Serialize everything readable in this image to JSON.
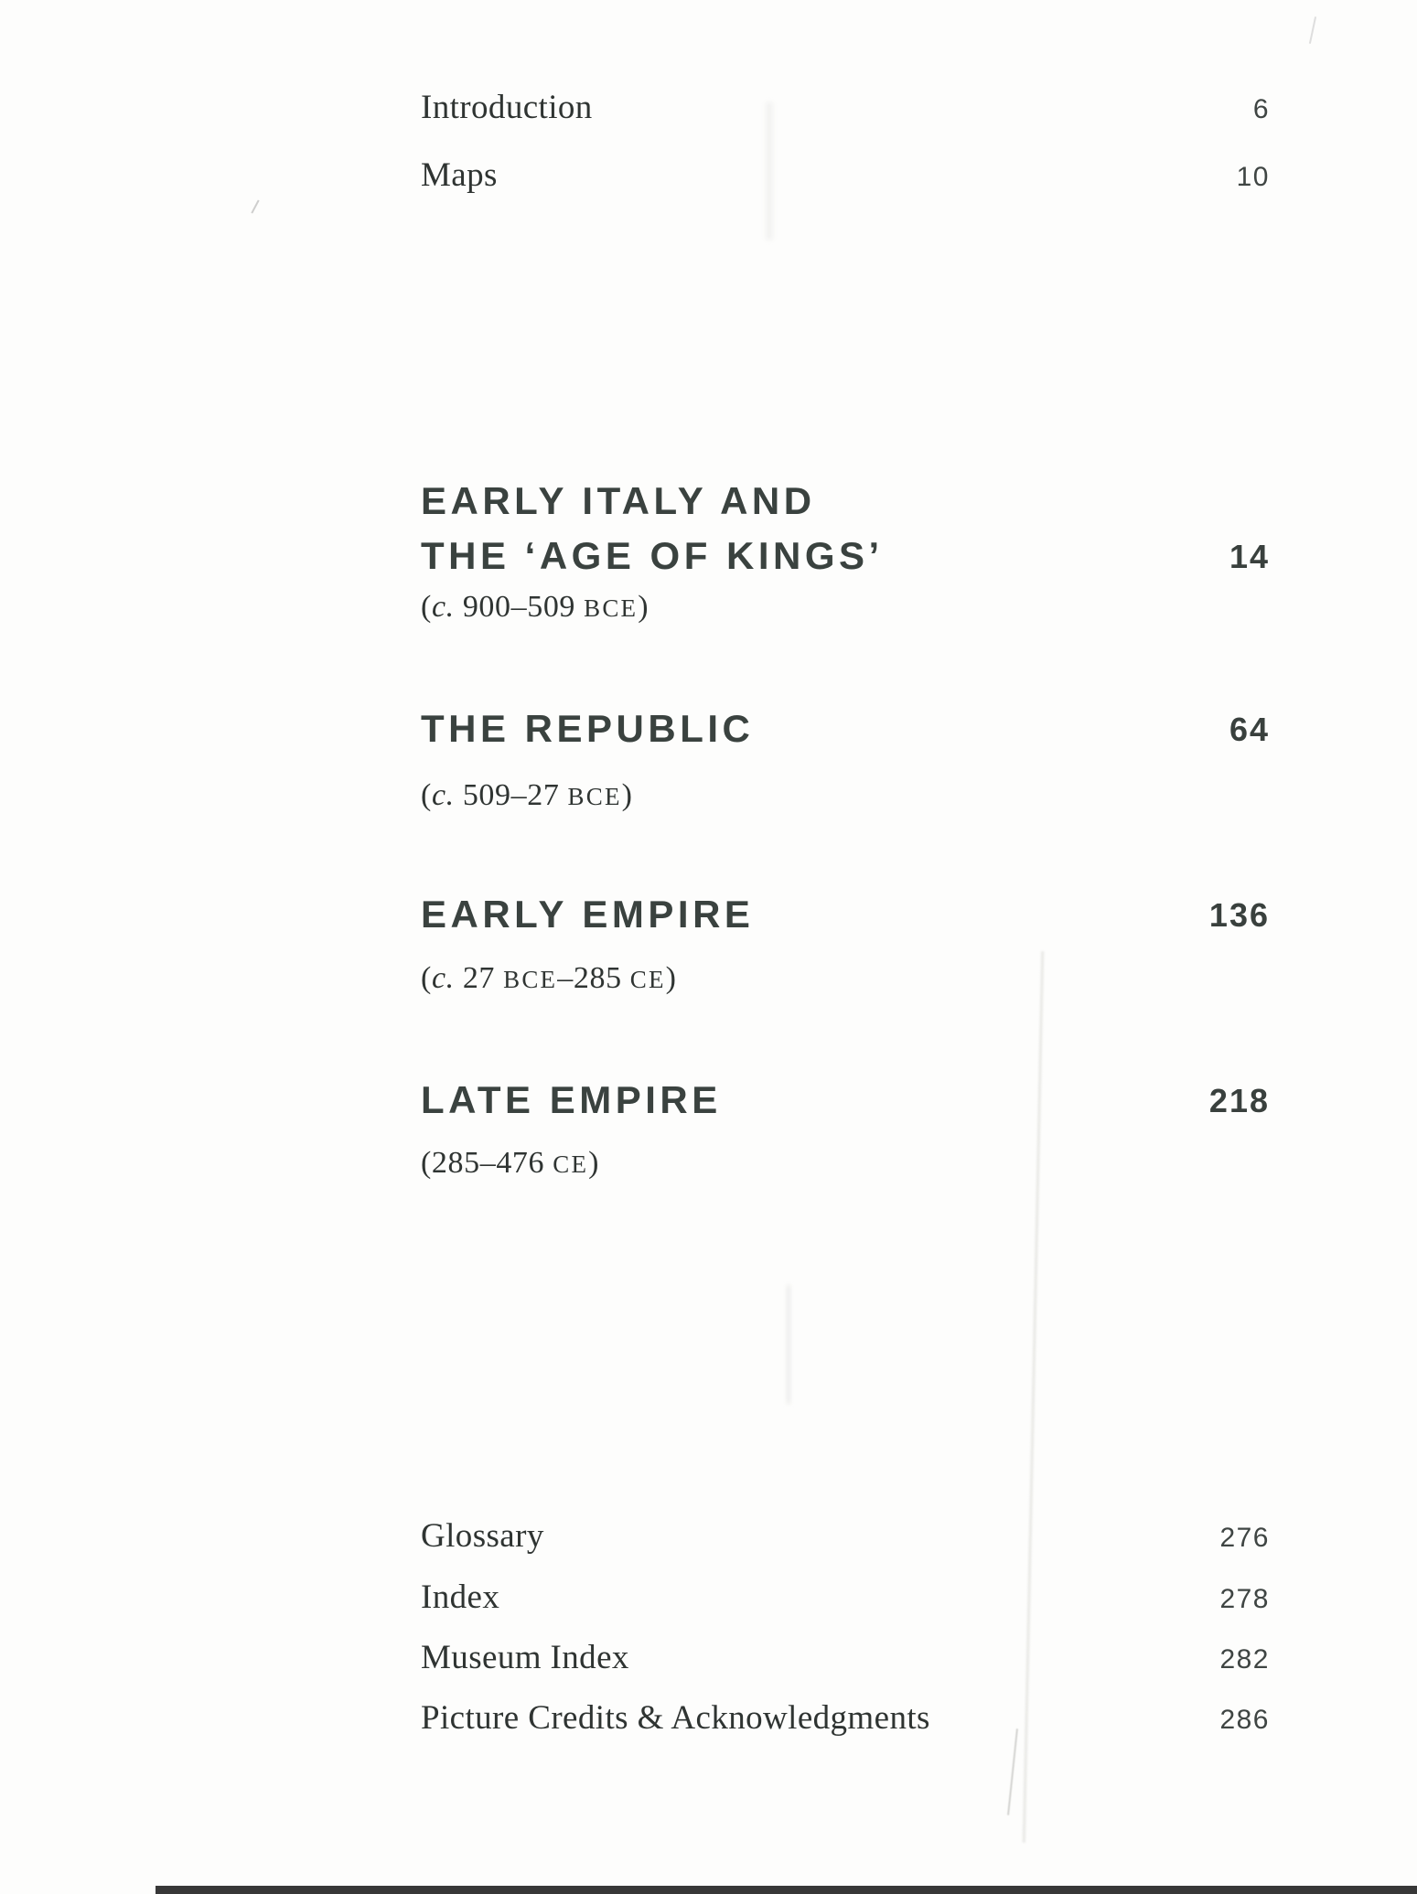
{
  "page": {
    "front_matter": [
      {
        "label": "Introduction",
        "page": "6"
      },
      {
        "label": "Maps",
        "page": "10"
      }
    ],
    "sections": [
      {
        "title_line1": "EARLY ITALY AND",
        "title_line2": "THE ‘AGE OF KINGS’",
        "page": "14",
        "date_segments": [
          {
            "t": "(",
            "s": ""
          },
          {
            "t": "c.",
            "s": "i"
          },
          {
            "t": " 900–509 ",
            "s": ""
          },
          {
            "t": "BCE",
            "s": "sc"
          },
          {
            "t": ")",
            "s": ""
          }
        ]
      },
      {
        "title_line1": "THE REPUBLIC",
        "page": "64",
        "date_segments": [
          {
            "t": "(",
            "s": ""
          },
          {
            "t": "c.",
            "s": "i"
          },
          {
            "t": " 509–27 ",
            "s": ""
          },
          {
            "t": "BCE",
            "s": "sc"
          },
          {
            "t": ")",
            "s": ""
          }
        ]
      },
      {
        "title_line1": "EARLY EMPIRE",
        "page": "136",
        "date_segments": [
          {
            "t": "(",
            "s": ""
          },
          {
            "t": "c.",
            "s": "i"
          },
          {
            "t": " 27 ",
            "s": ""
          },
          {
            "t": "BCE",
            "s": "sc"
          },
          {
            "t": "–285 ",
            "s": ""
          },
          {
            "t": "CE",
            "s": "sc"
          },
          {
            "t": ")",
            "s": ""
          }
        ]
      },
      {
        "title_line1": "LATE EMPIRE",
        "page": "218",
        "date_segments": [
          {
            "t": "(285–476 ",
            "s": ""
          },
          {
            "t": "CE",
            "s": "sc"
          },
          {
            "t": ")",
            "s": ""
          }
        ]
      }
    ],
    "back_matter": [
      {
        "label": "Glossary",
        "page": "276"
      },
      {
        "label": "Index",
        "page": "278"
      },
      {
        "label": "Museum Index",
        "page": "282"
      },
      {
        "label": "Picture Credits & Acknowledgments",
        "page": "286"
      }
    ],
    "colors": {
      "serif_ink": "#2f3432",
      "heading_ink": "#3a423f",
      "number_ink": "#3f4543",
      "scan_edge": "#383838"
    }
  }
}
